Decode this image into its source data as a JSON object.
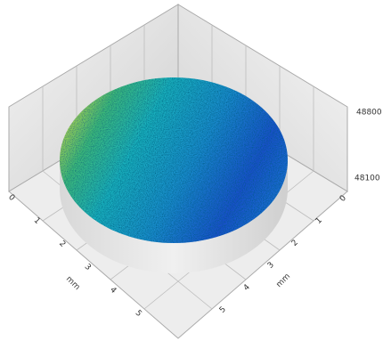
{
  "left_axis": {
    "ticks": [
      "0",
      "1",
      "2",
      "3",
      "4",
      "5"
    ],
    "label": "mm"
  },
  "right_axis": {
    "ticks": [
      "0",
      "1",
      "2",
      "3",
      "4",
      "5"
    ],
    "label": "mm"
  },
  "z_axis": {
    "ticks": [
      "48800",
      "48100"
    ]
  }
}
